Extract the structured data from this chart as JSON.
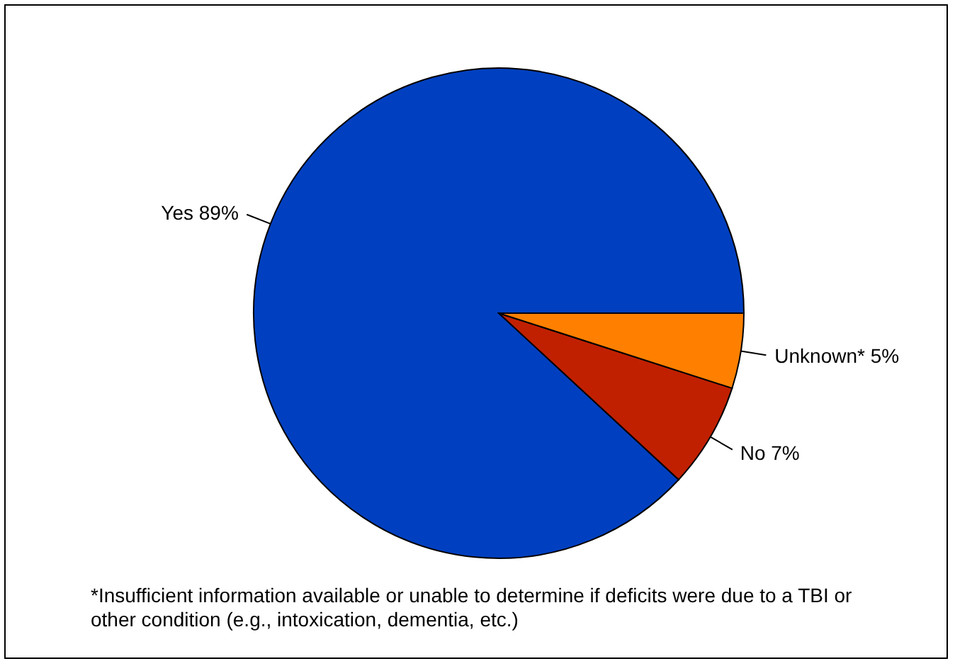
{
  "chart_data": {
    "type": "pie",
    "categories": [
      "Yes",
      "No",
      "Unknown*"
    ],
    "values": [
      89,
      7,
      5
    ],
    "colors": [
      "#0040c0",
      "#c02000",
      "#ff8000"
    ],
    "value_labels": [
      "89%",
      "7%",
      "5%"
    ],
    "annotations": [
      "*Insufficient information available or unable to determine if deficits were due to a TBI or other condition (e.g., intoxication, dementia, etc.)"
    ]
  }
}
